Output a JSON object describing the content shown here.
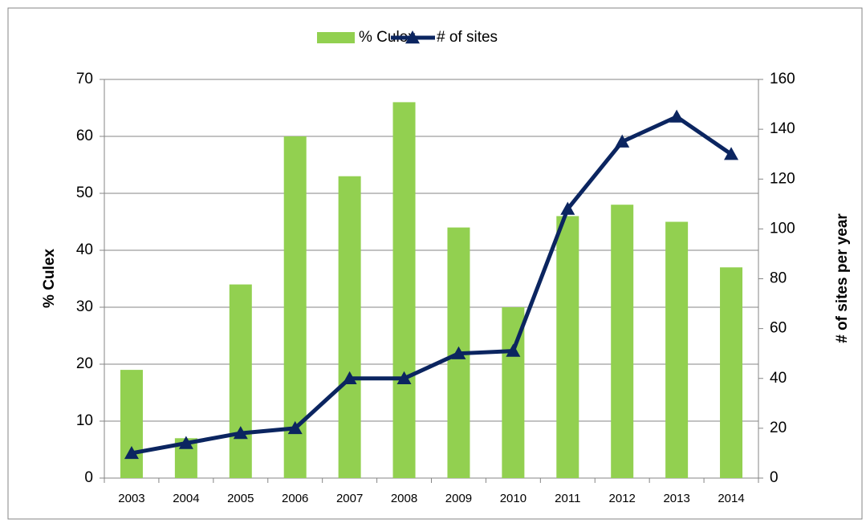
{
  "chart_data": {
    "type": "bar",
    "categories": [
      "2003",
      "2004",
      "2005",
      "2006",
      "2007",
      "2008",
      "2009",
      "2010",
      "2011",
      "2012",
      "2013",
      "2014"
    ],
    "series": [
      {
        "name": "% Culex",
        "type": "bar",
        "color": "#92d050",
        "values": [
          19,
          7,
          34,
          60,
          53,
          66,
          44,
          30,
          46,
          48,
          45,
          37
        ]
      },
      {
        "name": "# of sites",
        "type": "line",
        "axis": "y2",
        "color": "#0b2560",
        "values": [
          10,
          14,
          18,
          20,
          40,
          40,
          50,
          51,
          108,
          135,
          145,
          130
        ]
      }
    ],
    "ylabel": "% Culex",
    "y2label": "# of sites per year",
    "ylim": [
      0,
      70
    ],
    "yticks": [
      0,
      10,
      20,
      30,
      40,
      50,
      60,
      70
    ],
    "y2lim": [
      0,
      160
    ],
    "y2ticks": [
      0,
      20,
      40,
      60,
      80,
      100,
      120,
      140,
      160
    ],
    "grid": true,
    "legend": "top"
  }
}
